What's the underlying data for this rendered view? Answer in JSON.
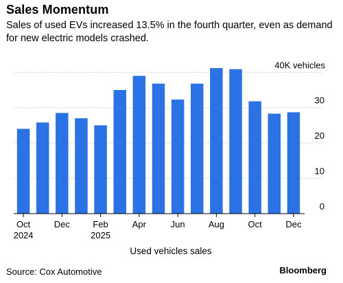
{
  "header": {
    "title": "Sales Momentum",
    "subtitle": "Sales of used EVs increased 13.5% in the fourth quarter, even as demand for new electric models crashed."
  },
  "footer": {
    "source": "Source: Cox Automotive",
    "brand": "Bloomberg"
  },
  "colors": {
    "bar": "#2b73e4",
    "grid": "#c8c8c8",
    "axis": "#000000"
  },
  "chart_data": {
    "type": "bar",
    "categories": [
      "Oct 2024",
      "Nov 2024",
      "Dec 2024",
      "Jan 2025",
      "Feb 2025",
      "Mar 2025",
      "Apr 2025",
      "May 2025",
      "Jun 2025",
      "Jul 2025",
      "Aug 2025",
      "Sep 2025",
      "Oct 2025",
      "Nov 2025",
      "Dec 2025"
    ],
    "values": [
      24,
      25.8,
      28.5,
      27,
      25,
      35,
      39,
      36.8,
      32.3,
      36.8,
      41.2,
      40.9,
      31.8,
      28.3,
      28.7
    ],
    "x_tick_labels": [
      {
        "index": 0,
        "lines": [
          "Oct",
          "2024"
        ]
      },
      {
        "index": 2,
        "lines": [
          "Dec"
        ]
      },
      {
        "index": 4,
        "lines": [
          "Feb",
          "2025"
        ]
      },
      {
        "index": 6,
        "lines": [
          "Apr"
        ]
      },
      {
        "index": 8,
        "lines": [
          "Jun"
        ]
      },
      {
        "index": 10,
        "lines": [
          "Aug"
        ]
      },
      {
        "index": 12,
        "lines": [
          "Oct"
        ]
      },
      {
        "index": 14,
        "lines": [
          "Dec"
        ]
      }
    ],
    "y_ticks": [
      0,
      10,
      20,
      30,
      40
    ],
    "y_tick_labels": [
      "0",
      "10",
      "20",
      "30",
      "40K vehicles"
    ],
    "ylim": [
      0,
      42
    ],
    "xlabel": "Used vehicles sales",
    "ylabel": "",
    "grid": true,
    "y_axis_side": "right"
  }
}
